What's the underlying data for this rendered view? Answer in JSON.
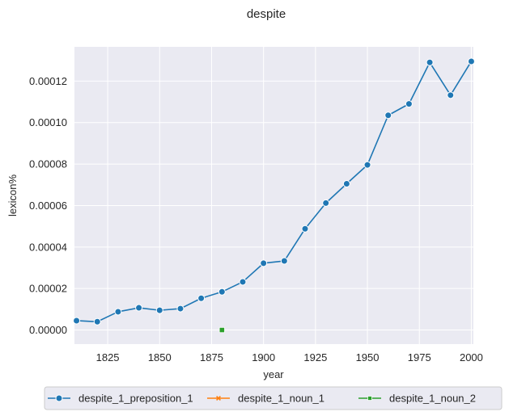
{
  "chart_data": {
    "type": "line",
    "title": "despite",
    "xlabel": "year",
    "ylabel": "lexicon%",
    "xlim": [
      1809,
      2001
    ],
    "ylim": [
      -6.8e-06,
      0.0001365
    ],
    "xticks": [
      1825,
      1850,
      1875,
      1900,
      1925,
      1950,
      1975,
      2000
    ],
    "yticks": [
      0.0,
      2e-05,
      4e-05,
      6e-05,
      8e-05,
      0.0001,
      0.00012
    ],
    "ytick_labels": [
      "0.00000",
      "0.00002",
      "0.00004",
      "0.00006",
      "0.00008",
      "0.00010",
      "0.00012"
    ],
    "grid": true,
    "legend_position": "bottom, outside plot",
    "series": [
      {
        "name": "despite_1_preposition_1",
        "color": "#1f77b4",
        "marker": "circle",
        "x": [
          1810,
          1820,
          1830,
          1840,
          1850,
          1860,
          1870,
          1880,
          1890,
          1900,
          1910,
          1920,
          1930,
          1940,
          1950,
          1960,
          1970,
          1980,
          1990,
          2000
        ],
        "y": [
          4.5e-06,
          4e-06,
          8.8e-06,
          1.07e-05,
          9.5e-06,
          1.03e-05,
          1.53e-05,
          1.84e-05,
          2.32e-05,
          3.22e-05,
          3.33e-05,
          4.88e-05,
          6.12e-05,
          7.05e-05,
          7.96e-05,
          0.0001035,
          0.000109,
          0.000129,
          0.0001132,
          0.0001295
        ]
      },
      {
        "name": "despite_1_noun_1",
        "color": "#ff7f0e",
        "marker": "x",
        "x": [],
        "y": []
      },
      {
        "name": "despite_1_noun_2",
        "color": "#2ca02c",
        "marker": "square",
        "x": [
          1880
        ],
        "y": [
          0.0
        ]
      }
    ]
  }
}
